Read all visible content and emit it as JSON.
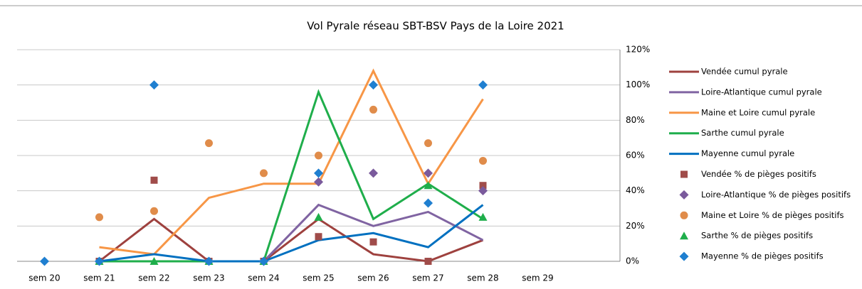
{
  "chart_data": {
    "type": "line",
    "title": "Vol Pyrale réseau SBT-BSV Pays de la Loire 2021",
    "categories": [
      "sem 20",
      "sem 21",
      "sem 22",
      "sem 23",
      "sem 24",
      "sem 25",
      "sem 26",
      "sem 27",
      "sem 28",
      "sem 29",
      null
    ],
    "ylim": [
      0,
      120
    ],
    "yticks": [
      {
        "value": 0,
        "label": "0%"
      },
      {
        "value": 20,
        "label": "20%"
      },
      {
        "value": 40,
        "label": "40%"
      },
      {
        "value": 60,
        "label": "60%"
      },
      {
        "value": 80,
        "label": "80%"
      },
      {
        "value": 100,
        "label": "100%"
      },
      {
        "value": 120,
        "label": "120%"
      }
    ],
    "grid": true,
    "legend": "right",
    "series": [
      {
        "name": "Vendée cumul pyrale",
        "color": "#9e413e",
        "line": true,
        "values": [
          null,
          0,
          24,
          0,
          0,
          24,
          4,
          0,
          12,
          null,
          null
        ]
      },
      {
        "name": "Loire-Atlantique cumul pyrale",
        "color": "#8064a2",
        "line": true,
        "values": [
          null,
          0,
          0,
          0,
          0,
          32,
          20,
          28,
          12,
          null,
          null
        ]
      },
      {
        "name": "Maine et Loire cumul pyrale",
        "color": "#f79646",
        "line": true,
        "values": [
          null,
          8,
          4,
          36,
          44,
          44,
          108,
          44,
          92,
          null,
          null
        ]
      },
      {
        "name": "Sarthe cumul pyrale",
        "color": "#1fae4b",
        "line": true,
        "values": [
          null,
          0,
          0,
          0,
          0,
          96,
          24,
          44,
          24,
          null,
          null
        ]
      },
      {
        "name": "Mayenne cumul pyrale",
        "color": "#0070c0",
        "line": true,
        "values": [
          null,
          0,
          4,
          0,
          0,
          12,
          16,
          8,
          32,
          null,
          null
        ]
      },
      {
        "name": "Vendée % de pièges positifs",
        "color": "#a04c4a",
        "marker": "square",
        "values": [
          null,
          0,
          46,
          0,
          0,
          14,
          11,
          0,
          43,
          null,
          null
        ]
      },
      {
        "name": "Loire-Atlantique % de pièges positifs",
        "color": "#7a5a9c",
        "marker": "diamond",
        "values": [
          null,
          null,
          null,
          null,
          0,
          45,
          50,
          50,
          40,
          null,
          null
        ]
      },
      {
        "name": "Maine et Loire % de pièges positifs",
        "color": "#e08c4a",
        "marker": "circle",
        "values": [
          null,
          25,
          28.5,
          67,
          50,
          60,
          86,
          67,
          57,
          null,
          null
        ]
      },
      {
        "name": "Sarthe % de pièges positifs",
        "color": "#1fae4b",
        "marker": "triangle",
        "values": [
          null,
          0,
          0,
          0,
          0,
          25,
          null,
          43,
          25,
          null,
          null
        ]
      },
      {
        "name": "Mayenne % de pièges positifs",
        "color": "#1f7fd0",
        "marker": "diamond",
        "values": [
          0,
          0,
          100,
          0,
          0,
          50,
          100,
          33,
          100,
          null,
          null
        ]
      }
    ]
  }
}
